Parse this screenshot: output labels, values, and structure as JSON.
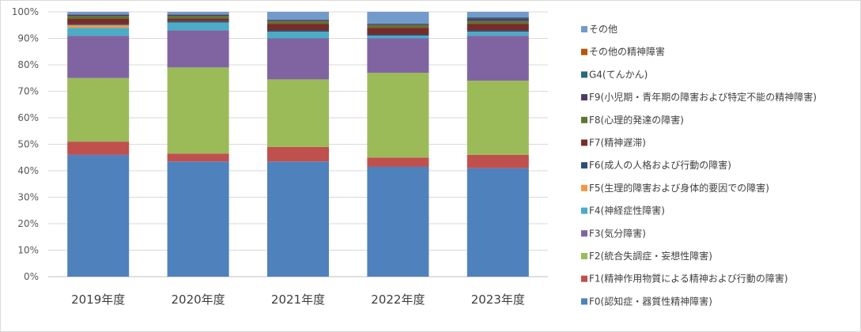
{
  "chart_data": {
    "type": "bar",
    "stacked": true,
    "normalized": true,
    "categories": [
      "2019年度",
      "2020年度",
      "2021年度",
      "2022年度",
      "2023年度"
    ],
    "ylim": [
      0,
      100
    ],
    "yticks": [
      "0%",
      "10%",
      "20%",
      "30%",
      "40%",
      "50%",
      "60%",
      "70%",
      "80%",
      "90%",
      "100%"
    ],
    "legend_position": "right",
    "grid": true,
    "series": [
      {
        "name": "F0(認知症・器質性精神障害)",
        "color": "#4F81BD",
        "values": [
          46,
          43.5,
          43.5,
          41.5,
          41
        ]
      },
      {
        "name": "F1(精神作用物質による精神および行動の障害)",
        "color": "#C0504D",
        "values": [
          5,
          3,
          5.5,
          3.5,
          5
        ]
      },
      {
        "name": "F2(統合失調症・妄想性障害)",
        "color": "#9BBB59",
        "values": [
          24,
          32.5,
          25.5,
          32,
          28
        ]
      },
      {
        "name": "F3(気分障害)",
        "color": "#8064A2",
        "values": [
          16,
          14,
          15.5,
          13,
          17
        ]
      },
      {
        "name": "F4(神経症性障害)",
        "color": "#4BACC6",
        "values": [
          3,
          3,
          2.5,
          1,
          1.5
        ]
      },
      {
        "name": "F5(生理的障害および身体的要因での障害)",
        "color": "#F79646",
        "values": [
          1,
          0,
          0,
          0,
          0
        ]
      },
      {
        "name": "F6(成人の人格および行動の障害)",
        "color": "#2C4D75",
        "values": [
          0.5,
          0.5,
          0.5,
          0.5,
          0.5
        ]
      },
      {
        "name": "F7(精神遅滞)",
        "color": "#772C2A",
        "values": [
          2,
          1,
          2.5,
          2.5,
          2.5
        ]
      },
      {
        "name": "F8(心理的発達の障害)",
        "color": "#5F7530",
        "values": [
          1,
          1,
          1,
          1,
          1
        ]
      },
      {
        "name": "F9(小児期・青年期の障害および特定不能の精神障害)",
        "color": "#4D3B62",
        "values": [
          0.5,
          0.5,
          0.5,
          0.5,
          1
        ]
      },
      {
        "name": "G4(てんかん)",
        "color": "#276A7C",
        "values": [
          0,
          0,
          0,
          0,
          0.5
        ]
      },
      {
        "name": "その他の精神障害",
        "color": "#B65708",
        "values": [
          0,
          0,
          0,
          0,
          0
        ]
      },
      {
        "name": "その他",
        "color": "#729ACA",
        "values": [
          1,
          1,
          3,
          4.5,
          2
        ]
      }
    ]
  }
}
